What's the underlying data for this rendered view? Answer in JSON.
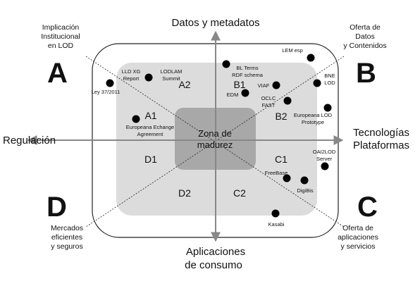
{
  "axes": {
    "top": "Datos y metadatos",
    "left": "Regulación",
    "right": [
      "Tecnologías",
      "Plataformas"
    ],
    "bottom": [
      "Aplicaciones",
      "de consumo"
    ]
  },
  "corners": {
    "A": {
      "letter": "A",
      "lines": [
        "Implicación",
        "Institucional",
        "en LOD"
      ]
    },
    "B": {
      "letter": "B",
      "lines": [
        "Oferta de",
        "Datos",
        "y Contenidos"
      ]
    },
    "C": {
      "letter": "C",
      "lines": [
        "Oferta de",
        "aplicaciones",
        "y servicios"
      ]
    },
    "D": {
      "letter": "D",
      "lines": [
        "Mercados",
        "eficientes",
        "y seguros"
      ]
    }
  },
  "center": [
    "Zona de",
    "madurez"
  ],
  "zones": [
    "A1",
    "A2",
    "B1",
    "B2",
    "C1",
    "C2",
    "D1",
    "D2"
  ],
  "points": [
    {
      "id": "ley",
      "lines": [
        "Ley 37/2011"
      ]
    },
    {
      "id": "lldxg",
      "lines": [
        "LLD XG",
        "Report"
      ]
    },
    {
      "id": "lodlam",
      "lines": [
        "LODLAM",
        "Summit"
      ]
    },
    {
      "id": "bl",
      "lines": [
        "BL Terms",
        "RDF schema"
      ]
    },
    {
      "id": "edm",
      "lines": [
        "EDM"
      ]
    },
    {
      "id": "lem",
      "lines": [
        "LEM esp"
      ]
    },
    {
      "id": "viaf",
      "lines": [
        "VIAF"
      ]
    },
    {
      "id": "oclc",
      "lines": [
        "OCLC",
        "FAST"
      ]
    },
    {
      "id": "bne",
      "lines": [
        "BNE",
        "LOD"
      ]
    },
    {
      "id": "eurolod",
      "lines": [
        "Europeana LOD",
        "Prototype"
      ]
    },
    {
      "id": "europex",
      "lines": [
        "Europeana Echange",
        "Agreement"
      ]
    },
    {
      "id": "oai",
      "lines": [
        "OAI2LOD",
        "Server"
      ]
    },
    {
      "id": "freebase",
      "lines": [
        "FreeBase"
      ]
    },
    {
      "id": "digibis",
      "lines": [
        "DigiBis"
      ]
    },
    {
      "id": "kasabi",
      "lines": [
        "Kasabi"
      ]
    }
  ],
  "colors": {
    "outer_fill": "#ffffff",
    "mid_fill": "#dcdcdc",
    "inner_fill": "#a8a8a8",
    "outline": "#222222",
    "axis": "#888888",
    "dot": "#000000"
  }
}
